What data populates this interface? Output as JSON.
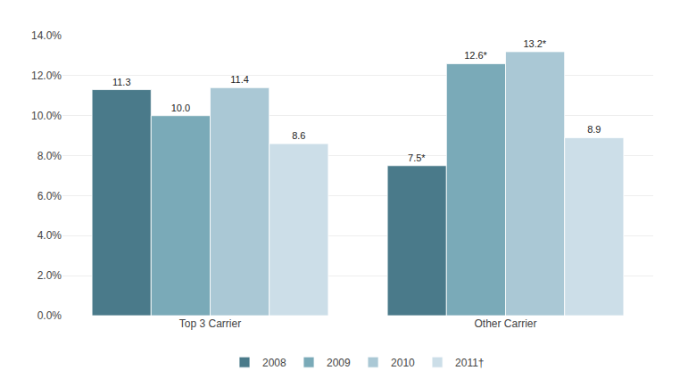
{
  "chart_data": {
    "type": "bar",
    "categories": [
      "Top 3 Carrier",
      "Other Carrier"
    ],
    "series": [
      {
        "name": "2008",
        "color": "#4a7a8a",
        "values": [
          11.3,
          7.5
        ],
        "value_labels": [
          "11.3",
          "7.5*"
        ]
      },
      {
        "name": "2009",
        "color": "#7aaab8",
        "values": [
          10.0,
          12.6
        ],
        "value_labels": [
          "10.0",
          "12.6*"
        ]
      },
      {
        "name": "2010",
        "color": "#aac8d5",
        "values": [
          11.4,
          13.2
        ],
        "value_labels": [
          "11.4",
          "13.2*"
        ]
      },
      {
        "name": "2011†",
        "color": "#ccdee8",
        "values": [
          8.6,
          8.9
        ],
        "value_labels": [
          "8.6",
          "8.9"
        ]
      }
    ],
    "ylim": [
      0,
      14
    ],
    "yticks": [
      {
        "value": 0,
        "label": "0.0%"
      },
      {
        "value": 2,
        "label": "2.0%"
      },
      {
        "value": 4,
        "label": "4.0%"
      },
      {
        "value": 6,
        "label": "6.0%"
      },
      {
        "value": 8,
        "label": "8.0%"
      },
      {
        "value": 10,
        "label": "10.0%"
      },
      {
        "value": 12,
        "label": "12.0%"
      },
      {
        "value": 14,
        "label": "14.0%"
      }
    ],
    "grid": true,
    "legend": "bottom",
    "data_labels": true
  }
}
